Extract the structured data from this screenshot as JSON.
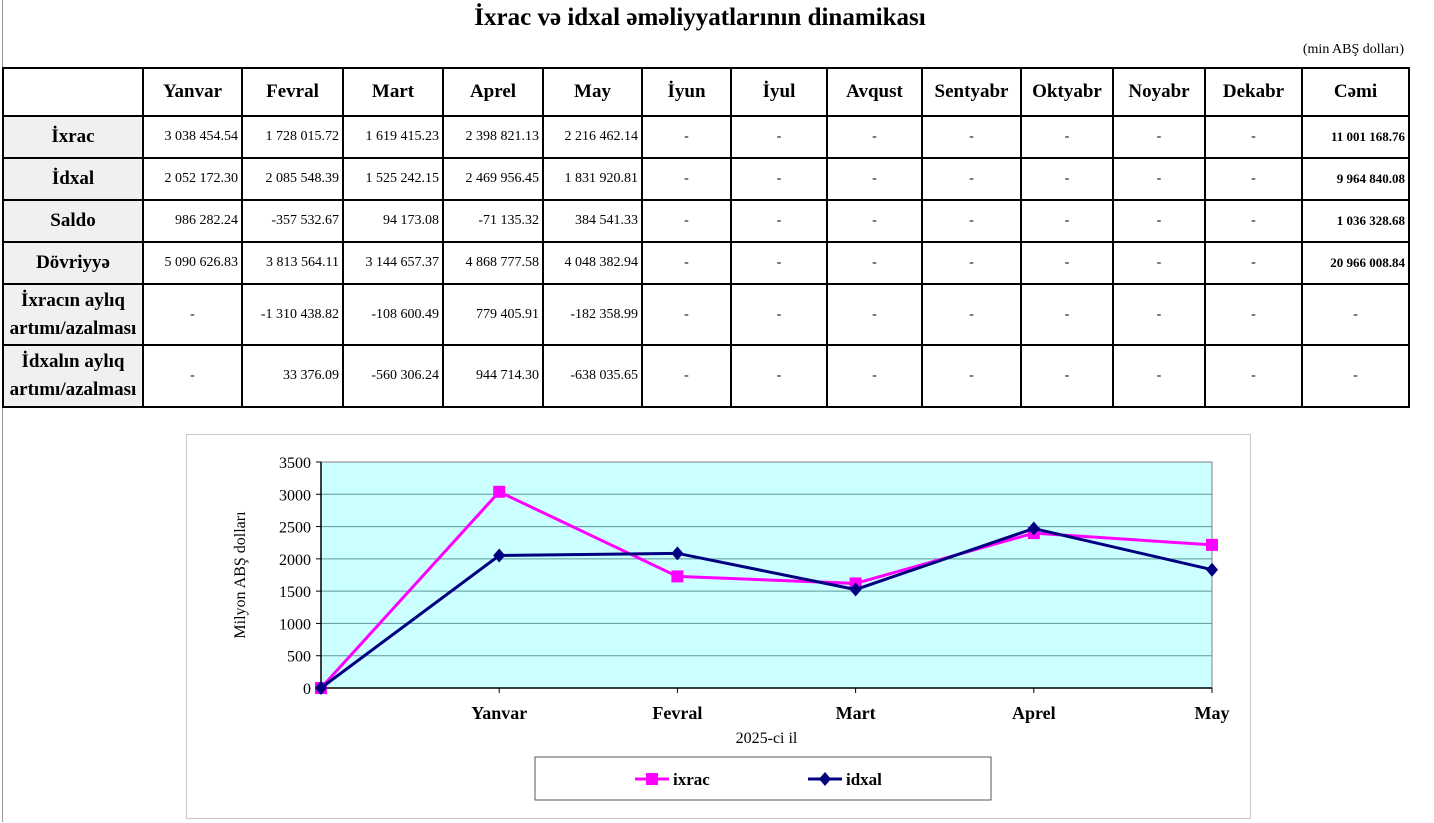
{
  "title": "İxrac və idxal əməliyyatlarının dinamikası",
  "unit": "(min ABŞ dolları)",
  "table": {
    "headers": [
      "",
      "Yanvar",
      "Fevral",
      "Mart",
      "Aprel",
      "May",
      "İyun",
      "İyul",
      "Avqust",
      "Sentyabr",
      "Oktyabr",
      "Noyabr",
      "Dekabr",
      "Cəmi"
    ],
    "rows": [
      {
        "label": "İxrac",
        "cells": [
          "3 038 454.54",
          "1 728 015.72",
          "1 619 415.23",
          "2 398 821.13",
          "2 216 462.14",
          "-",
          "-",
          "-",
          "-",
          "-",
          "-",
          "-"
        ],
        "total": "11 001 168.76"
      },
      {
        "label": "İdxal",
        "cells": [
          "2 052 172.30",
          "2 085 548.39",
          "1 525 242.15",
          "2 469 956.45",
          "1 831 920.81",
          "-",
          "-",
          "-",
          "-",
          "-",
          "-",
          "-"
        ],
        "total": "9 964 840.08"
      },
      {
        "label": "Saldo",
        "cells": [
          "986 282.24",
          "-357 532.67",
          "94 173.08",
          "-71 135.32",
          "384 541.33",
          "-",
          "-",
          "-",
          "-",
          "-",
          "-",
          "-"
        ],
        "total": "1 036 328.68"
      },
      {
        "label": "Dövriyyə",
        "cells": [
          "5 090 626.83",
          "3 813 564.11",
          "3 144 657.37",
          "4 868 777.58",
          "4 048 382.94",
          "-",
          "-",
          "-",
          "-",
          "-",
          "-",
          "-"
        ],
        "total": "20 966 008.84"
      },
      {
        "label": "İxracın aylıq artımı/azalması",
        "cells": [
          "-",
          "-1 310 438.82",
          "-108 600.49",
          "779 405.91",
          "-182 358.99",
          "-",
          "-",
          "-",
          "-",
          "-",
          "-",
          "-"
        ],
        "total": "-"
      },
      {
        "label": "İdxalın aylıq artımı/azalması",
        "cells": [
          "-",
          "33 376.09",
          "-560 306.24",
          "944 714.30",
          "-638 035.65",
          "-",
          "-",
          "-",
          "-",
          "-",
          "-",
          "-"
        ],
        "total": "-"
      }
    ]
  },
  "chart_data": {
    "type": "line",
    "categories": [
      "",
      "Yanvar",
      "Fevral",
      "Mart",
      "Aprel",
      "May"
    ],
    "series": [
      {
        "name": "ixrac",
        "color": "#ff00ff",
        "marker": "square",
        "values": [
          0,
          3038.45,
          1728.02,
          1619.42,
          2398.82,
          2216.46
        ]
      },
      {
        "name": "idxal",
        "color": "#000080",
        "marker": "diamond",
        "values": [
          0,
          2052.17,
          2085.55,
          1525.24,
          2469.96,
          1831.92
        ]
      }
    ],
    "xlabel": "2025-ci il",
    "ylabel": "Milyon ABŞ dolları",
    "ylim": [
      0,
      3500
    ],
    "yticks": [
      0,
      500,
      1000,
      1500,
      2000,
      2500,
      3000,
      3500
    ],
    "grid": true,
    "plot_bg": "#ccffff",
    "legend": "bottom"
  }
}
